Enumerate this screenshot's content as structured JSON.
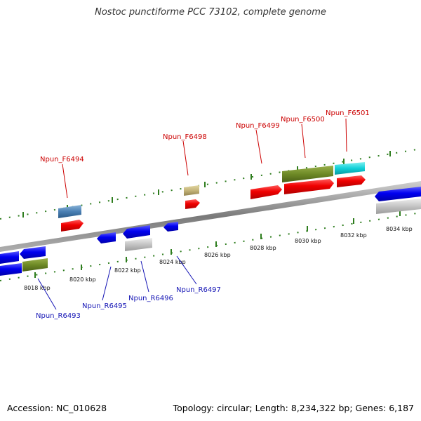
{
  "title": "Nostoc punctiforme PCC 73102, complete genome",
  "footer": {
    "accession": "Accession: NC_010628",
    "topology": "Topology: circular; Length: 8,234,322 bp; Genes: 6,187"
  },
  "colors": {
    "backbone": "#8a8a8a",
    "ticks": "#2e7d1e",
    "forward_label": "#cc0000",
    "reverse_label": "#1515b5"
  },
  "scale_labels": [
    "8018 kbp",
    "8020 kbp",
    "8022 kbp",
    "8024 kbp",
    "8026 kbp",
    "8028 kbp",
    "8030 kbp",
    "8032 kbp",
    "8034 kbp"
  ],
  "gene_labels": {
    "forward": [
      "Npun_F6494",
      "Npun_F6498",
      "Npun_F6499",
      "Npun_F6500",
      "Npun_F6501"
    ],
    "reverse": [
      "Npun_R6493",
      "Npun_R6495",
      "Npun_R6496",
      "Npun_R6497"
    ]
  }
}
